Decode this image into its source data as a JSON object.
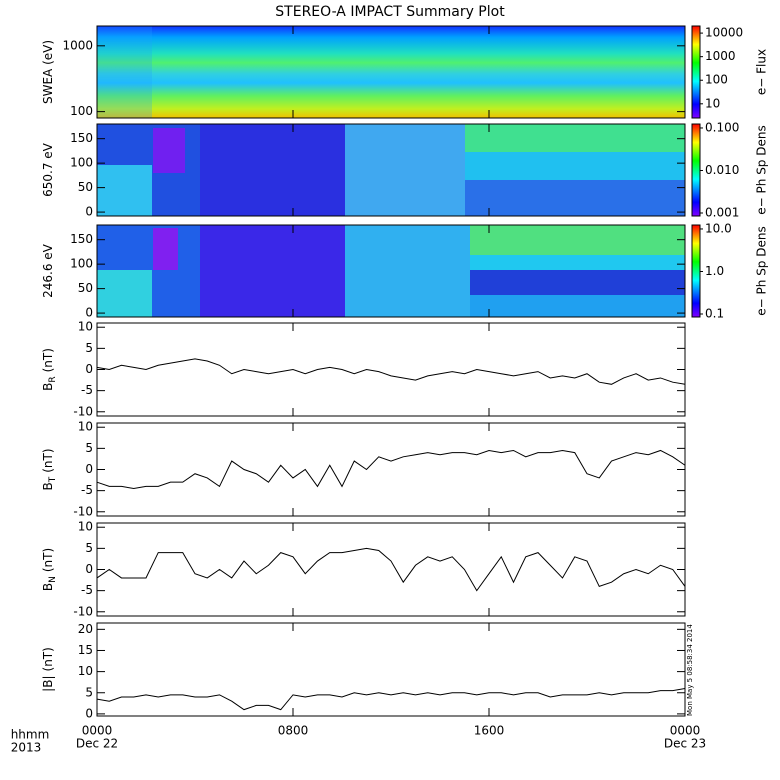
{
  "title": "STEREO-A IMPACT Summary Plot",
  "footer": {
    "unit": "hhmm",
    "year": "2013"
  },
  "timestamp": "Mon May 5 08:58:34 2014",
  "chart_data": [
    {
      "type": "heatmap",
      "ylabel": "SWEA (eV)",
      "log": true,
      "ylim": [
        80,
        2000
      ],
      "yticks": [
        100,
        1000
      ],
      "clabel": "e− Flux",
      "clim": [
        2.5,
        20000
      ],
      "cticks": [
        10,
        100,
        1000,
        10000
      ],
      "xlim": [
        0,
        24
      ],
      "xticks": [
        0,
        8,
        16,
        24
      ]
    },
    {
      "type": "heatmap",
      "ylabel": "650.7 eV",
      "ylim": [
        -8,
        180
      ],
      "yticks": [
        0,
        50,
        100,
        150
      ],
      "clabel": "e− Ph Sp Dens",
      "clim": [
        0.00085,
        0.124
      ],
      "cticks": [
        0.001,
        {
          "value": 0.01,
          "label": "0.010"
        },
        {
          "value": 0.1,
          "label": "0.100"
        }
      ],
      "xlim": [
        0,
        24
      ],
      "xticks": [
        0,
        8,
        16,
        24
      ]
    },
    {
      "type": "heatmap",
      "ylabel": "246.6 eV",
      "ylim": [
        -8,
        180
      ],
      "yticks": [
        0,
        50,
        100,
        150
      ],
      "clabel": "e− Ph Sp Dens",
      "clim": [
        0.085,
        12.4
      ],
      "cticks": [
        0.1,
        {
          "value": 1,
          "label": "1.0"
        },
        {
          "value": 10,
          "label": "10.0"
        }
      ],
      "xlim": [
        0,
        24
      ],
      "xticks": [
        0,
        8,
        16,
        24
      ]
    },
    {
      "type": "line",
      "ylabel": "B",
      "ylabel_sub": "R",
      "ylabel_unit": "(nT)",
      "color": "#000000",
      "ylim": [
        -11,
        11
      ],
      "yticks": [
        -10,
        -5,
        0,
        5,
        10
      ],
      "xlim": [
        0,
        24
      ],
      "xticks": [
        0,
        8,
        16,
        24
      ],
      "x": [
        0,
        0.5,
        1,
        1.5,
        2,
        2.5,
        3,
        3.5,
        4,
        4.5,
        5,
        5.5,
        6,
        6.5,
        7,
        7.5,
        8,
        8.5,
        9,
        9.5,
        10,
        10.5,
        11,
        11.5,
        12,
        12.5,
        13,
        13.5,
        14,
        14.5,
        15,
        15.5,
        16,
        16.5,
        17,
        17.5,
        18,
        18.5,
        19,
        19.5,
        20,
        20.5,
        21,
        21.5,
        22,
        22.5,
        23,
        23.5,
        24
      ],
      "values": [
        0.5,
        0,
        1,
        0.5,
        0,
        1,
        1.5,
        2,
        2.5,
        2,
        1,
        -1,
        0,
        -0.5,
        -1,
        -0.5,
        0,
        -1,
        0,
        0.5,
        0,
        -1,
        0,
        -0.5,
        -1.5,
        -2,
        -2.5,
        -1.5,
        -1,
        -0.5,
        -1,
        0,
        -0.5,
        -1,
        -1.5,
        -1,
        -0.5,
        -2,
        -1.5,
        -2,
        -1,
        -3,
        -3.5,
        -2,
        -1,
        -2.5,
        -2,
        -3,
        -3.5
      ]
    },
    {
      "type": "line",
      "ylabel": "B",
      "ylabel_sub": "T",
      "ylabel_unit": "(nT)",
      "color": "#000000",
      "ylim": [
        -11,
        11
      ],
      "yticks": [
        -10,
        -5,
        0,
        5,
        10
      ],
      "xlim": [
        0,
        24
      ],
      "xticks": [
        0,
        8,
        16,
        24
      ],
      "x": [
        0,
        0.5,
        1,
        1.5,
        2,
        2.5,
        3,
        3.5,
        4,
        4.5,
        5,
        5.5,
        6,
        6.5,
        7,
        7.5,
        8,
        8.5,
        9,
        9.5,
        10,
        10.5,
        11,
        11.5,
        12,
        12.5,
        13,
        13.5,
        14,
        14.5,
        15,
        15.5,
        16,
        16.5,
        17,
        17.5,
        18,
        18.5,
        19,
        19.5,
        20,
        20.5,
        21,
        21.5,
        22,
        22.5,
        23,
        23.5,
        24
      ],
      "values": [
        -3,
        -4,
        -4,
        -4.5,
        -4,
        -4,
        -3,
        -3,
        -1,
        -2,
        -4,
        2,
        0,
        -1,
        -3,
        1,
        -2,
        0,
        -4,
        1,
        -4,
        2,
        0,
        3,
        2,
        3,
        3.5,
        4,
        3.5,
        4,
        4,
        3.5,
        4.5,
        4,
        4.5,
        3,
        4,
        4,
        4.5,
        4,
        -1,
        -2,
        2,
        3,
        4,
        3.5,
        4.5,
        3,
        1
      ]
    },
    {
      "type": "line",
      "ylabel": "B",
      "ylabel_sub": "N",
      "ylabel_unit": "(nT)",
      "color": "#000000",
      "ylim": [
        -11,
        11
      ],
      "yticks": [
        -10,
        -5,
        0,
        5,
        10
      ],
      "xlim": [
        0,
        24
      ],
      "xticks": [
        0,
        8,
        16,
        24
      ],
      "x": [
        0,
        0.5,
        1,
        1.5,
        2,
        2.5,
        3,
        3.5,
        4,
        4.5,
        5,
        5.5,
        6,
        6.5,
        7,
        7.5,
        8,
        8.5,
        9,
        9.5,
        10,
        10.5,
        11,
        11.5,
        12,
        12.5,
        13,
        13.5,
        14,
        14.5,
        15,
        15.5,
        16,
        16.5,
        17,
        17.5,
        18,
        18.5,
        19,
        19.5,
        20,
        20.5,
        21,
        21.5,
        22,
        22.5,
        23,
        23.5,
        24
      ],
      "values": [
        -2,
        0,
        -2,
        -2,
        -2,
        4,
        4,
        4,
        -1,
        -2,
        0,
        -2,
        2,
        -1,
        1,
        4,
        3,
        -1,
        2,
        4,
        4,
        4.5,
        5,
        4.5,
        2,
        -3,
        1,
        3,
        2,
        3,
        0,
        -5,
        -1,
        3,
        -3,
        3,
        4,
        1,
        -2,
        3,
        2,
        -4,
        -3,
        -1,
        0,
        -1,
        1,
        0,
        -4
      ]
    },
    {
      "type": "line",
      "ylabel": "|B|",
      "ylabel_unit": "(nT)",
      "color": "#000000",
      "ylim": [
        -0.5,
        21.5
      ],
      "yticks": [
        0,
        5,
        10,
        15,
        20
      ],
      "xlim": [
        0,
        24
      ],
      "xticks": [
        {
          "value": 0,
          "label": "0000"
        },
        {
          "value": 8,
          "label": "0800"
        },
        {
          "value": 16,
          "label": "1600"
        },
        {
          "value": 24,
          "label": "0000"
        }
      ],
      "xtick_dates": [
        "Dec 22",
        null,
        null,
        "Dec 23"
      ],
      "x": [
        0,
        0.5,
        1,
        1.5,
        2,
        2.5,
        3,
        3.5,
        4,
        4.5,
        5,
        5.5,
        6,
        6.5,
        7,
        7.5,
        8,
        8.5,
        9,
        9.5,
        10,
        10.5,
        11,
        11.5,
        12,
        12.5,
        13,
        13.5,
        14,
        14.5,
        15,
        15.5,
        16,
        16.5,
        17,
        17.5,
        18,
        18.5,
        19,
        19.5,
        20,
        20.5,
        21,
        21.5,
        22,
        22.5,
        23,
        23.5,
        24
      ],
      "values": [
        3.5,
        3,
        4,
        4,
        4.5,
        4,
        4.5,
        4.5,
        4,
        4,
        4.5,
        3,
        1,
        2,
        2,
        1,
        4.5,
        4,
        4.5,
        4.5,
        4,
        5,
        4.5,
        5,
        4.5,
        5,
        4.5,
        5,
        4.5,
        5,
        5,
        4.5,
        5,
        5,
        4.5,
        5,
        5,
        4,
        4.5,
        4.5,
        4.5,
        5,
        4.5,
        5,
        5,
        5,
        5.5,
        5.5,
        6
      ]
    }
  ]
}
